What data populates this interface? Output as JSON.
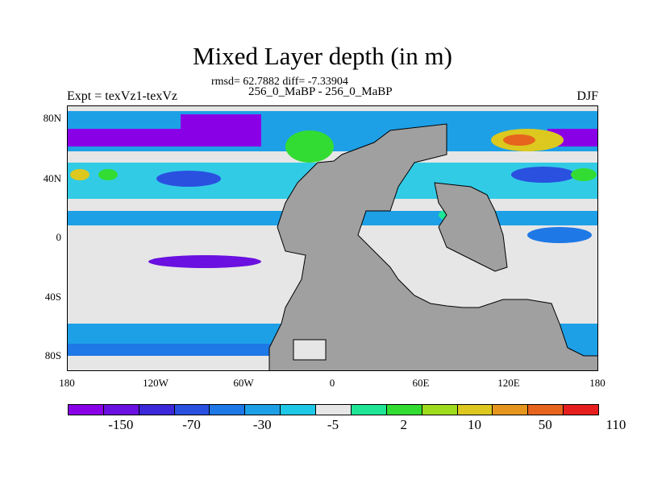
{
  "title": "Mixed Layer depth (in m)",
  "stats": "rmsd= 62.7882 diff= -7.33904",
  "subtitle": "256_0_MaBP - 256_0_MaBP",
  "left_label": "Expt = texVz1-texVz",
  "right_label": "DJF",
  "map": {
    "lat_ticks": [
      "80N",
      "40N",
      "0",
      "40S",
      "80S"
    ],
    "lon_ticks": [
      "180",
      "120W",
      "60W",
      "0",
      "60E",
      "120E",
      "180"
    ],
    "land_color": "#a0a0a0",
    "background_color": "#e6e6e6"
  },
  "colorbar": {
    "colors": [
      "#8a00e6",
      "#6a10e0",
      "#3c28d8",
      "#2a50e0",
      "#1e78e6",
      "#1ea0e6",
      "#1ec8e6",
      "#e6e6e6",
      "#1ee696",
      "#32dc32",
      "#a0dc1e",
      "#dcc81e",
      "#e6961e",
      "#e6641e",
      "#e61e1e"
    ],
    "labels": [
      "-150",
      "-70",
      "-30",
      "-5",
      "2",
      "10",
      "50",
      "110"
    ]
  }
}
